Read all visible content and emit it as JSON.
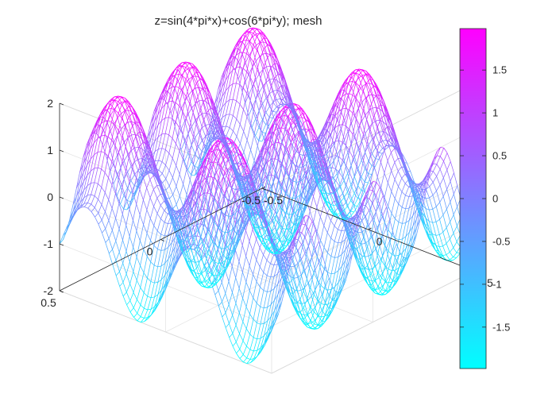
{
  "chart_data": {
    "type": "mesh",
    "title": "z=sin(4*pi*x)+cos(6*pi*y); mesh",
    "function": "z=sin(4*pi*x)+cos(6*pi*y)",
    "xlim": [
      -0.5,
      0.5
    ],
    "ylim": [
      -0.5,
      0.5
    ],
    "zlim": [
      -2,
      2
    ],
    "grid_points": 60,
    "x_ticks": [
      {
        "value": -0.5,
        "label": "-0.5"
      },
      {
        "value": 0,
        "label": "0"
      },
      {
        "value": 0.5,
        "label": "0.5"
      }
    ],
    "y_ticks": [
      {
        "value": -0.5,
        "label": "-0.5"
      },
      {
        "value": 0,
        "label": "0"
      },
      {
        "value": 0.5,
        "label": "0.5"
      }
    ],
    "z_ticks": [
      {
        "value": -2,
        "label": "-2"
      },
      {
        "value": -1,
        "label": "-1"
      },
      {
        "value": 0,
        "label": "0"
      },
      {
        "value": 1,
        "label": "1"
      },
      {
        "value": 2,
        "label": "2"
      }
    ],
    "colormap": [
      "#00ffff",
      "#ff00ff"
    ],
    "colorbar": {
      "position": "right",
      "clim": [
        -1.9836,
        1.9836
      ],
      "ticks": [
        {
          "value": -1.5,
          "label": "-1.5"
        },
        {
          "value": -1,
          "label": "-1"
        },
        {
          "value": -0.5,
          "label": "-0.5"
        },
        {
          "value": 0,
          "label": "0"
        },
        {
          "value": 0.5,
          "label": "0.5"
        },
        {
          "value": 1,
          "label": "1"
        },
        {
          "value": 1.5,
          "label": "1.5"
        }
      ]
    },
    "grid": true
  }
}
